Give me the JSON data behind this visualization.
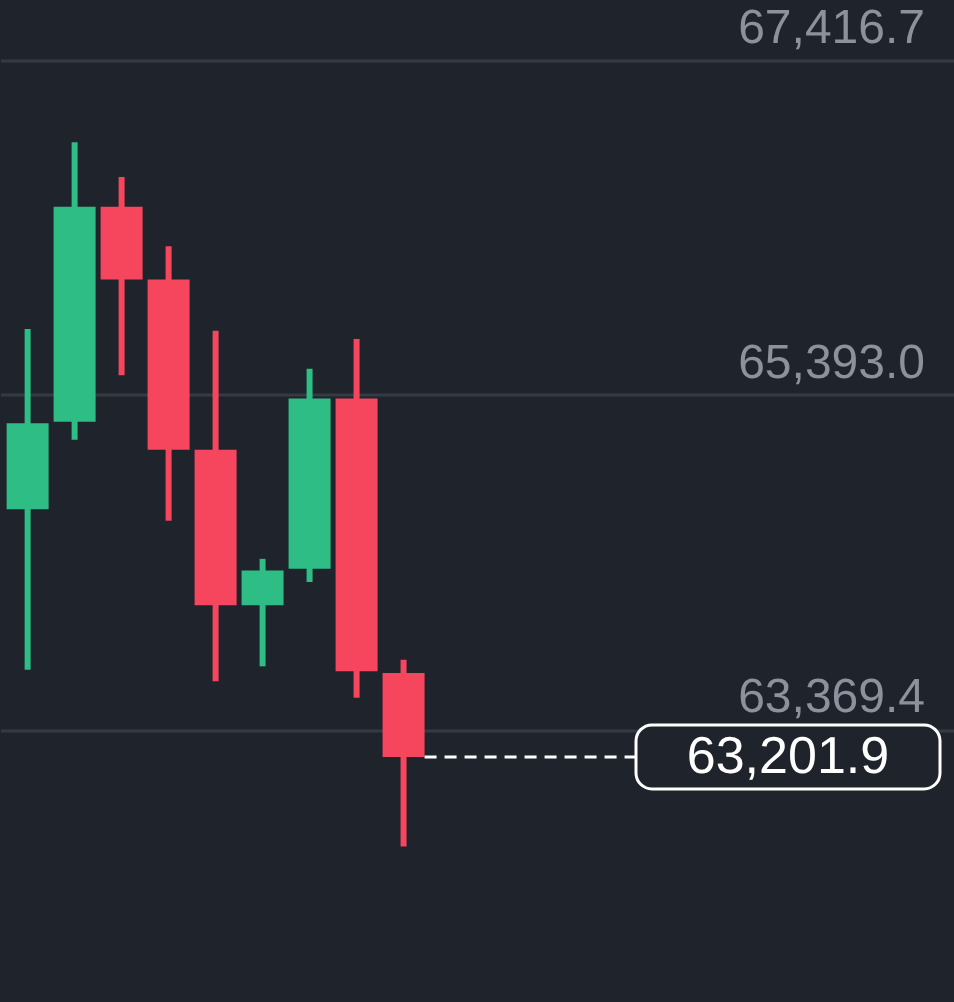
{
  "chart_data": {
    "type": "candlestick",
    "categories": [
      null,
      null,
      null,
      null,
      null,
      null,
      null,
      null,
      null,
      null,
      null,
      null,
      null,
      null,
      null,
      null,
      null,
      null,
      null,
      null
    ],
    "ohlc": [
      [
        64700,
        65790,
        63730,
        65220
      ],
      [
        65230,
        66920,
        65120,
        66530
      ],
      [
        66530,
        66710,
        65510,
        66090
      ],
      [
        66090,
        66290,
        64630,
        65060
      ],
      [
        65060,
        65780,
        63660,
        64120
      ],
      [
        64120,
        64400,
        63750,
        64330
      ],
      [
        64340,
        65550,
        64260,
        65370
      ],
      [
        65370,
        65730,
        63560,
        63720
      ],
      [
        63710,
        63790,
        62660,
        63201.9
      ],
      null,
      null,
      null,
      null,
      null,
      null,
      null,
      null,
      null,
      null,
      null
    ],
    "colors": [
      "#2ebd85",
      "#2ebd85",
      "#f6465d",
      "#f6465d",
      "#f6465d",
      "#2ebd85",
      "#2ebd85",
      "#f6465d",
      "#f6465d",
      null,
      null,
      null,
      null,
      null,
      null,
      null,
      null,
      null,
      null,
      null
    ],
    "ylim": [
      61720,
      67780
    ],
    "yticks": [
      {
        "value": 63369.4,
        "label": "63,369.4"
      },
      {
        "value": 65393.0,
        "label": "65,393.0"
      },
      {
        "value": 67416.7,
        "label": "67,416.7"
      }
    ],
    "grid": "y",
    "tick_labels": "y",
    "ref_lines": [
      {
        "axis": "y",
        "value": 63201.9,
        "label": "63,201.9",
        "line_style": "dashed",
        "color": "#ffffff"
      }
    ]
  }
}
